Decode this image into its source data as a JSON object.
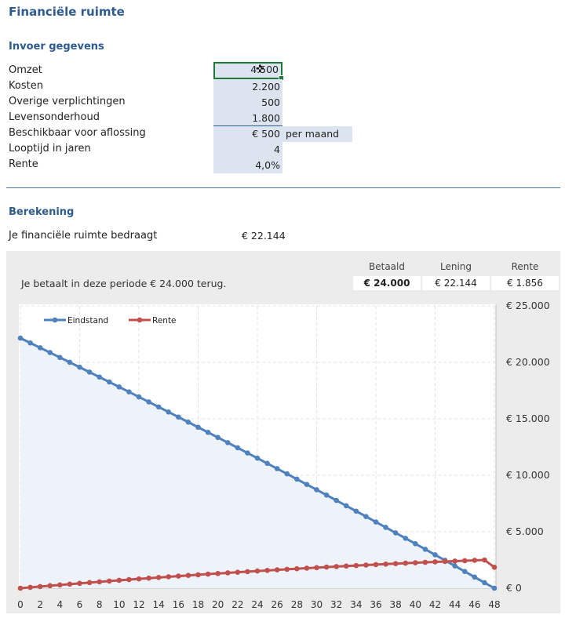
{
  "title": "Financiële ruimte",
  "invoer": {
    "heading": "Invoer gegevens",
    "rows": [
      {
        "label": "Omzet",
        "value": "4.500"
      },
      {
        "label": "Kosten",
        "value": "2.200"
      },
      {
        "label": "Overige verplichtingen",
        "value": "500"
      },
      {
        "label": "Levensonderhoud",
        "value": "1.800"
      },
      {
        "label": "Beschikbaar voor aflossing",
        "value": "€ 500",
        "suffix": "per maand"
      },
      {
        "label": "Looptijd in jaren",
        "value": "4"
      },
      {
        "label": "Rente",
        "value": "4,0%"
      }
    ]
  },
  "berekening": {
    "heading": "Berekening",
    "label": "Je financiële ruimte bedraagt",
    "value": "€ 22.144"
  },
  "summary": {
    "text": "Je betaalt in deze periode € 24.000 terug.",
    "columns": [
      "Betaald",
      "Lening",
      "Rente"
    ],
    "values": [
      "€ 24.000",
      "€ 22.144",
      "€ 1.856"
    ]
  },
  "colors": {
    "eindstand": "#4f81bd",
    "rente": "#c0504d",
    "accent": "#2e5b8f",
    "fill": "#dce4ef"
  },
  "chart_data": {
    "type": "line",
    "x": [
      0,
      1,
      2,
      3,
      4,
      5,
      6,
      7,
      8,
      9,
      10,
      11,
      12,
      13,
      14,
      15,
      16,
      17,
      18,
      19,
      20,
      21,
      22,
      23,
      24,
      25,
      26,
      27,
      28,
      29,
      30,
      31,
      32,
      33,
      34,
      35,
      36,
      37,
      38,
      39,
      40,
      41,
      42,
      43,
      44,
      45,
      46,
      47,
      48
    ],
    "xticks": [
      "0",
      "2",
      "4",
      "6",
      "8",
      "10",
      "12",
      "14",
      "16",
      "18",
      "20",
      "22",
      "24",
      "26",
      "28",
      "30",
      "32",
      "34",
      "36",
      "38",
      "40",
      "42",
      "44",
      "46",
      "48"
    ],
    "yticks": [
      "€ 0",
      "€ 5.000",
      "€ 10.000",
      "€ 15.000",
      "€ 20.000",
      "€ 25.000"
    ],
    "ylim": [
      0,
      25000
    ],
    "grid": true,
    "legend": "top-left",
    "series": [
      {
        "name": "Eindstand",
        "area": true,
        "values": [
          22144,
          21718,
          21291,
          20863,
          20433,
          20001,
          19568,
          19134,
          18698,
          18260,
          17821,
          17381,
          16939,
          16495,
          16050,
          15603,
          15155,
          14706,
          14254,
          13801,
          13347,
          12891,
          12433,
          11974,
          11514,
          11052,
          10588,
          10123,
          9656,
          9188,
          8718,
          8247,
          7774,
          7299,
          6823,
          6346,
          5866,
          5386,
          4903,
          4419,
          3934,
          3447,
          2958,
          2468,
          1976,
          1482,
          988,
          491,
          0
        ]
      },
      {
        "name": "Rente",
        "values": [
          0,
          74,
          146,
          218,
          289,
          359,
          428,
          496,
          564,
          630,
          696,
          760,
          824,
          887,
          949,
          1010,
          1070,
          1130,
          1188,
          1246,
          1302,
          1358,
          1413,
          1467,
          1521,
          1573,
          1625,
          1675,
          1725,
          1774,
          1822,
          1869,
          1916,
          1961,
          2006,
          2049,
          2092,
          2134,
          2175,
          2215,
          2254,
          2292,
          2329,
          2365,
          2400,
          2434,
          2467,
          2499,
          1856
        ]
      }
    ]
  }
}
